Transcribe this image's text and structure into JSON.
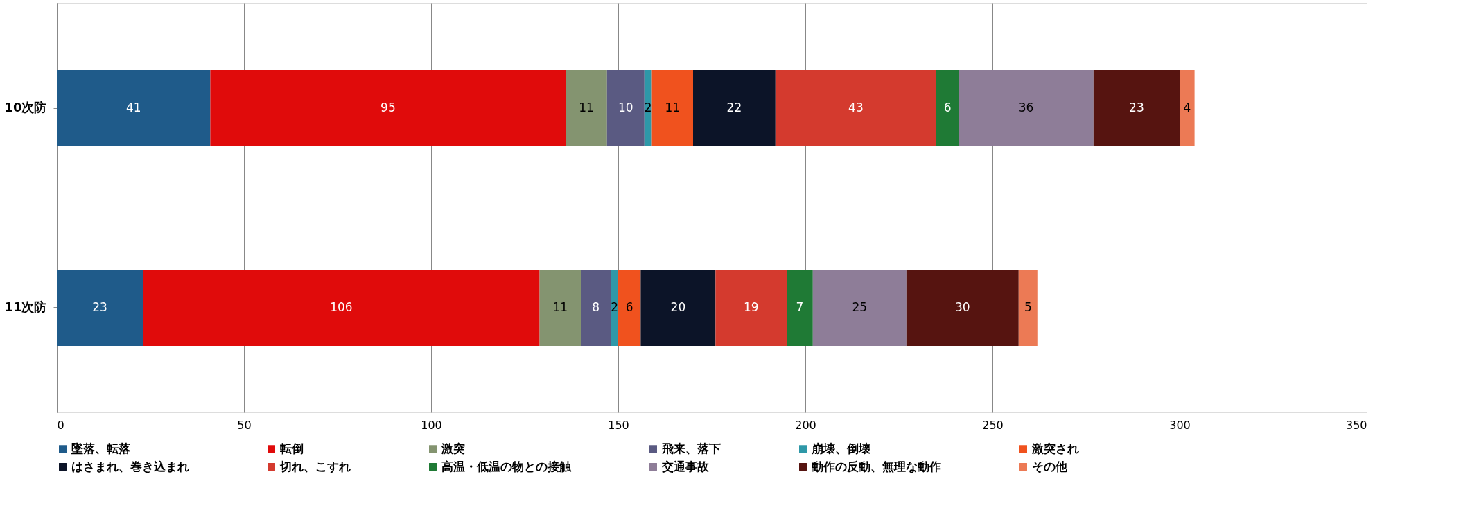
{
  "chart_data": {
    "type": "bar",
    "orientation": "horizontal",
    "stacked": true,
    "categories": [
      "10次防",
      "11次防"
    ],
    "series": [
      {
        "name": "墜落、転落",
        "color": "#1f5b8a",
        "values": [
          41,
          23
        ]
      },
      {
        "name": "転倒",
        "color": "#e00b0b",
        "values": [
          95,
          106
        ]
      },
      {
        "name": "激突",
        "color": "#849470",
        "values": [
          11,
          11
        ]
      },
      {
        "name": "飛来、落下",
        "color": "#5a5a82",
        "values": [
          10,
          8
        ]
      },
      {
        "name": "崩壊、倒壊",
        "color": "#2e98a8",
        "values": [
          2,
          2
        ]
      },
      {
        "name": "激突され",
        "color": "#f0521e",
        "values": [
          11,
          6
        ]
      },
      {
        "name": "はさまれ、巻き込まれ",
        "color": "#0c1428",
        "values": [
          22,
          20
        ]
      },
      {
        "name": "切れ、こすれ",
        "color": "#d43a2e",
        "values": [
          43,
          19
        ]
      },
      {
        "name": "高温・低温の物との接触",
        "color": "#1f7a35",
        "values": [
          6,
          7
        ]
      },
      {
        "name": "交通事故",
        "color": "#8e7d98",
        "values": [
          36,
          25
        ]
      },
      {
        "name": "動作の反動、無理な動作",
        "color": "#561410",
        "values": [
          23,
          30
        ]
      },
      {
        "name": "その他",
        "color": "#ec7a55",
        "values": [
          4,
          5
        ]
      }
    ],
    "xlim": [
      0,
      350
    ],
    "xticks": [
      0,
      50,
      100,
      150,
      200,
      250,
      300,
      350
    ],
    "grid": "x",
    "legend": "bottom",
    "data_labels": true
  }
}
